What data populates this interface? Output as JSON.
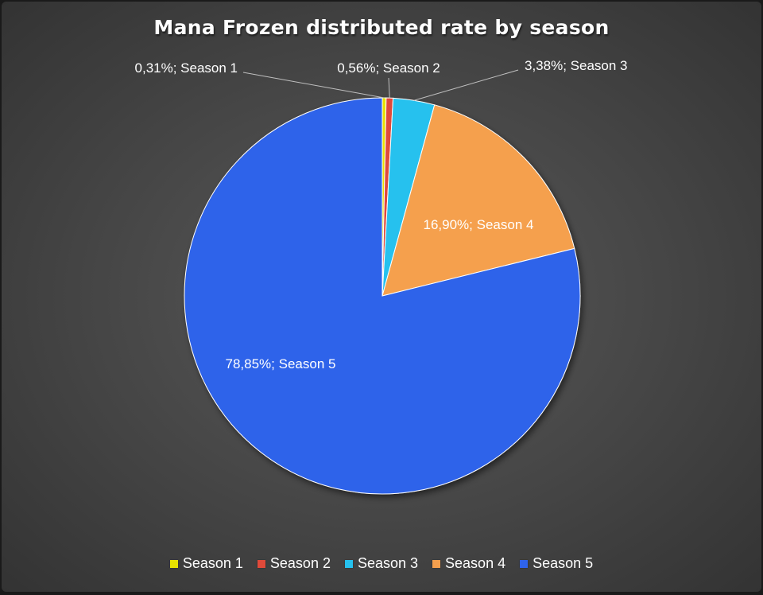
{
  "chart_data": {
    "type": "pie",
    "title": "Mana Frozen distributed rate by season",
    "slices": [
      {
        "name": "Season 1",
        "value": 0.31,
        "label": "0,31%; Season 1",
        "color": "#e8e200"
      },
      {
        "name": "Season 2",
        "value": 0.56,
        "label": "0,56%; Season 2",
        "color": "#e04a3a"
      },
      {
        "name": "Season 3",
        "value": 3.38,
        "label": "3,38%; Season 3",
        "color": "#26c1ee"
      },
      {
        "name": "Season 4",
        "value": 16.9,
        "label": "16,90%; Season 4",
        "color": "#f5a04e"
      },
      {
        "name": "Season 5",
        "value": 78.85,
        "label": "78,85%; Season 5",
        "color": "#2f63ea"
      }
    ],
    "legend_position": "bottom"
  }
}
